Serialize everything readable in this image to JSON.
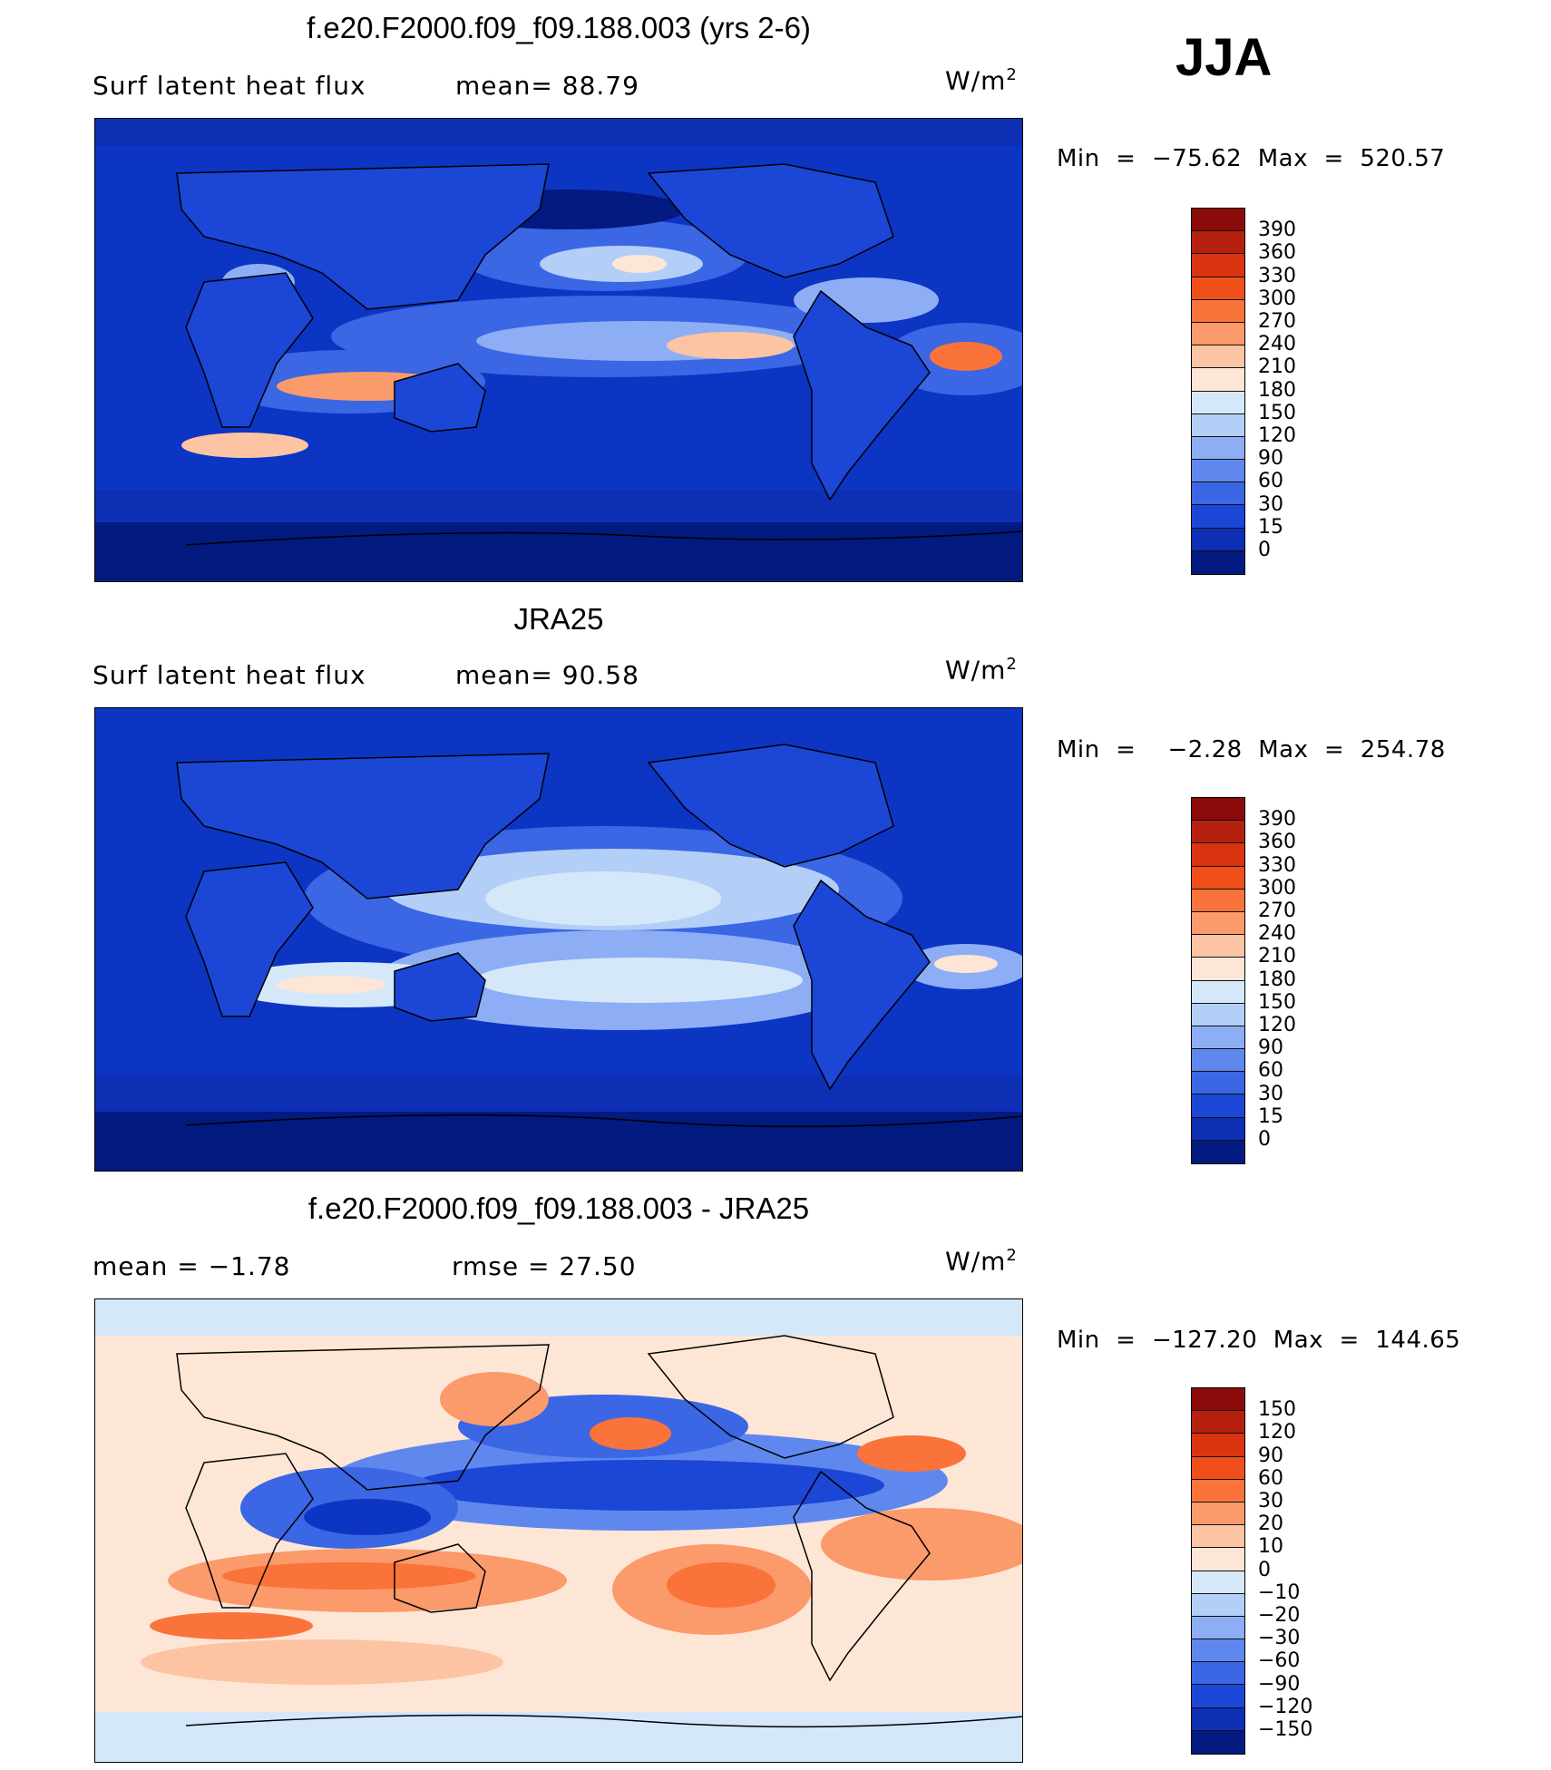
{
  "season": "JJA",
  "panels": [
    {
      "title": "f.e20.F2000.f09_f09.188.003 (yrs 2-6)",
      "sub_left": "Surf  latent  heat  flux",
      "sub_mid": "mean=   88.79",
      "units": "W/m",
      "units_exp": "2",
      "minmax": "Min  =  −75.62  Max  =  520.57",
      "base": "#0c35c4"
    },
    {
      "title": "JRA25",
      "sub_left": "Surf  latent  heat  flux",
      "sub_mid": "mean=   90.58",
      "units": "W/m",
      "units_exp": "2",
      "minmax": "Min  =    −2.28  Max  =  254.78",
      "base": "#0c35c4"
    },
    {
      "title": "f.e20.F2000.f09_f09.188.003 - JRA25",
      "sub_left": "mean  =    −1.78",
      "sub_mid": "rmse  =    27.50",
      "units": "W/m",
      "units_exp": "2",
      "minmax": "Min  =  −127.20  Max  =  144.65",
      "base": "#fde4d4"
    }
  ],
  "colorbars": [
    {
      "labels": [
        "390",
        "360",
        "330",
        "300",
        "270",
        "240",
        "210",
        "180",
        "150",
        "120",
        "90",
        "60",
        "30",
        "15",
        "0"
      ],
      "colors": [
        "#8b0a0a",
        "#b5200f",
        "#d9340f",
        "#f04f1a",
        "#f9733a",
        "#fb9a6a",
        "#fdc4a3",
        "#fde6d6",
        "#d5e8fa",
        "#b3cff8",
        "#8daef4",
        "#5f88ee",
        "#3b66e4",
        "#1c46d6",
        "#0c2fb4",
        "#031a80"
      ]
    },
    {
      "labels": [
        "390",
        "360",
        "330",
        "300",
        "270",
        "240",
        "210",
        "180",
        "150",
        "120",
        "90",
        "60",
        "30",
        "15",
        "0"
      ],
      "colors": [
        "#8b0a0a",
        "#b5200f",
        "#d9340f",
        "#f04f1a",
        "#f9733a",
        "#fb9a6a",
        "#fdc4a3",
        "#fde6d6",
        "#d5e8fa",
        "#b3cff8",
        "#8daef4",
        "#5f88ee",
        "#3b66e4",
        "#1c46d6",
        "#0c2fb4",
        "#031a80"
      ]
    },
    {
      "labels": [
        "150",
        "120",
        "90",
        "60",
        "30",
        "20",
        "10",
        "0",
        "−10",
        "−20",
        "−30",
        "−60",
        "−90",
        "−120",
        "−150"
      ],
      "colors": [
        "#8b0a0a",
        "#b5200f",
        "#d9340f",
        "#f04f1a",
        "#f9733a",
        "#fb9a6a",
        "#fdc4a3",
        "#fde6d6",
        "#d5e8fa",
        "#b3cff8",
        "#8daef4",
        "#5f88ee",
        "#3b66e4",
        "#1c46d6",
        "#0c2fb4",
        "#031a80"
      ]
    }
  ]
}
